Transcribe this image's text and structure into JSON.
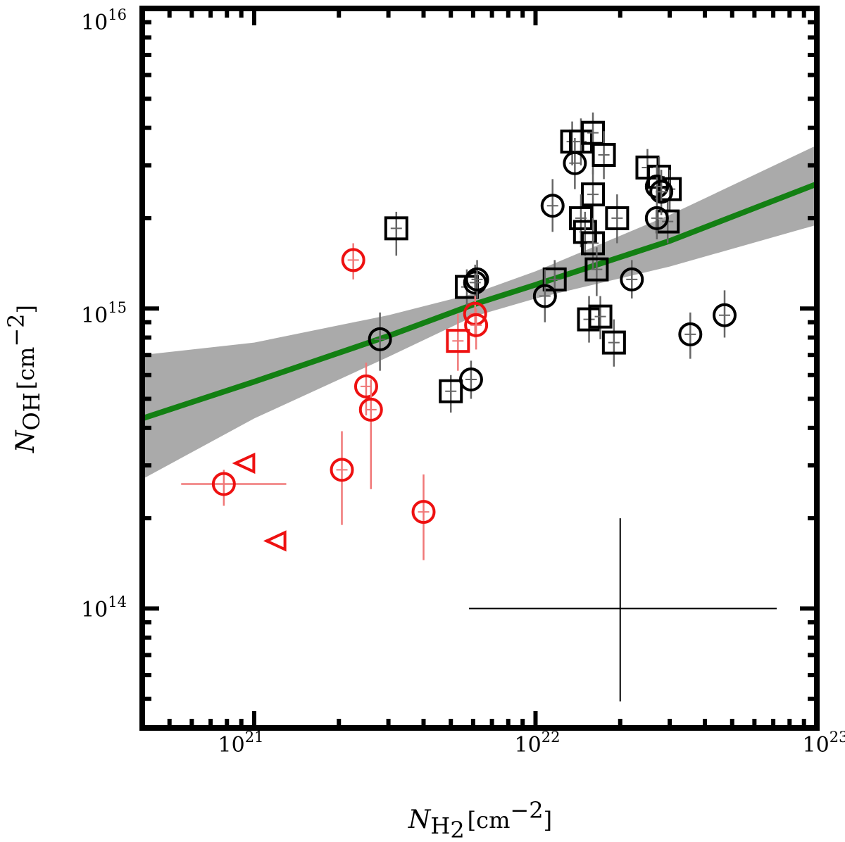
{
  "chart_data": {
    "type": "scatter",
    "title": "",
    "xscale": "log",
    "yscale": "log",
    "xlim": [
      4e+20,
      1e+23
    ],
    "ylim": [
      40000000000000.0,
      1e+16
    ],
    "x_ticks": [
      {
        "value": 1e+21,
        "base": "10",
        "exp": "21"
      },
      {
        "value": 1e+22,
        "base": "10",
        "exp": "22"
      },
      {
        "value": 1e+23,
        "base": "10",
        "exp": "23"
      }
    ],
    "y_ticks": [
      {
        "value": 100000000000000.0,
        "base": "10",
        "exp": "14"
      },
      {
        "value": 1000000000000000.0,
        "base": "10",
        "exp": "15"
      },
      {
        "value": 1e+16,
        "base": "10",
        "exp": "16"
      }
    ],
    "xlabel": {
      "symbol": "N",
      "sub": "H",
      "subsub": "2",
      "unit_open": "[cm",
      "unit_exp": "−2",
      "unit_close": "]"
    },
    "ylabel": {
      "symbol": "N",
      "sub": "OH",
      "unit_open": "[cm",
      "unit_exp": "−2",
      "unit_close": "]"
    },
    "fit": {
      "color": "#138013",
      "band_color": "#aaaaaa",
      "points": [
        {
          "x": 4e+20,
          "y": 430000000000000.0,
          "lo": 270000000000000.0,
          "hi": 700000000000000.0
        },
        {
          "x": 1e+21,
          "y": 570000000000000.0,
          "lo": 430000000000000.0,
          "hi": 770000000000000.0
        },
        {
          "x": 3e+21,
          "y": 810000000000000.0,
          "lo": 690000000000000.0,
          "hi": 950000000000000.0
        },
        {
          "x": 6e+21,
          "y": 1030000000000000.0,
          "lo": 940000000000000.0,
          "hi": 1120000000000000.0
        },
        {
          "x": 1e+22,
          "y": 1200000000000000.0,
          "lo": 1080000000000000.0,
          "hi": 1330000000000000.0
        },
        {
          "x": 3e+22,
          "y": 1680000000000000.0,
          "lo": 1380000000000000.0,
          "hi": 2050000000000000.0
        },
        {
          "x": 1e+23,
          "y": 2600000000000000.0,
          "lo": 1900000000000000.0,
          "hi": 3500000000000000.0
        }
      ]
    },
    "representative_error": {
      "x": 2e+22,
      "y": 100000000000000.0,
      "xlo": 5.8e+21,
      "xhi": 7.2e+22,
      "ylo": 49000000000000.0,
      "yhi": 200000000000000.0
    },
    "series": [
      {
        "name": "black-squares",
        "marker": "square",
        "color": "#000000",
        "errcolor": "#666666",
        "points": [
          {
            "x": 3.2e+21,
            "y": 1850000000000000.0,
            "ylo": 1500000000000000.0,
            "yhi": 2100000000000000.0
          },
          {
            "x": 5e+21,
            "y": 530000000000000.0,
            "ylo": 450000000000000.0,
            "yhi": 600000000000000.0
          },
          {
            "x": 5.7e+21,
            "y": 1180000000000000.0,
            "ylo": 1020000000000000.0,
            "yhi": 1350000000000000.0
          },
          {
            "x": 1.17e+22,
            "y": 1250000000000000.0,
            "ylo": 1100000000000000.0,
            "yhi": 1450000000000000.0
          },
          {
            "x": 1.35e+22,
            "y": 3600000000000000.0,
            "ylo": 3000000000000000.0,
            "yhi": 4200000000000000.0
          },
          {
            "x": 1.45e+22,
            "y": 3600000000000000.0,
            "ylo": 3000000000000000.0,
            "yhi": 4300000000000000.0
          },
          {
            "x": 1.6e+22,
            "y": 3850000000000000.0,
            "ylo": 2800000000000000.0,
            "yhi": 4500000000000000.0
          },
          {
            "x": 1.75e+22,
            "y": 3250000000000000.0,
            "ylo": 2700000000000000.0,
            "yhi": 3900000000000000.0
          },
          {
            "x": 1.6e+22,
            "y": 2400000000000000.0,
            "ylo": 2000000000000000.0,
            "yhi": 2900000000000000.0
          },
          {
            "x": 1.45e+22,
            "y": 2000000000000000.0,
            "ylo": 1600000000000000.0,
            "yhi": 2400000000000000.0
          },
          {
            "x": 1.5e+22,
            "y": 1800000000000000.0,
            "ylo": 1500000000000000.0,
            "yhi": 2100000000000000.0
          },
          {
            "x": 1.6e+22,
            "y": 1650000000000000.0,
            "ylo": 1350000000000000.0,
            "yhi": 2000000000000000.0
          },
          {
            "x": 1.65e+22,
            "y": 1350000000000000.0,
            "ylo": 1100000000000000.0,
            "yhi": 1600000000000000.0
          },
          {
            "x": 1.95e+22,
            "y": 2000000000000000.0,
            "ylo": 1650000000000000.0,
            "yhi": 2400000000000000.0
          },
          {
            "x": 1.55e+22,
            "y": 920000000000000.0,
            "ylo": 770000000000000.0,
            "yhi": 1100000000000000.0
          },
          {
            "x": 1.7e+22,
            "y": 940000000000000.0,
            "ylo": 790000000000000.0,
            "yhi": 1100000000000000.0
          },
          {
            "x": 1.9e+22,
            "y": 770000000000000.0,
            "ylo": 640000000000000.0,
            "yhi": 920000000000000.0
          },
          {
            "x": 2.5e+22,
            "y": 2950000000000000.0,
            "ylo": 2500000000000000.0,
            "yhi": 3400000000000000.0
          },
          {
            "x": 2.75e+22,
            "y": 2750000000000000.0,
            "ylo": 2300000000000000.0,
            "yhi": 3200000000000000.0
          },
          {
            "x": 3e+22,
            "y": 2500000000000000.0,
            "ylo": 2100000000000000.0,
            "yhi": 2900000000000000.0
          },
          {
            "x": 2.95e+22,
            "y": 1950000000000000.0,
            "ylo": 1650000000000000.0,
            "yhi": 2300000000000000.0
          }
        ]
      },
      {
        "name": "black-circles",
        "marker": "circle",
        "color": "#000000",
        "errcolor": "#666666",
        "points": [
          {
            "x": 2.8e+21,
            "y": 790000000000000.0,
            "ylo": 620000000000000.0,
            "yhi": 970000000000000.0
          },
          {
            "x": 5.9e+21,
            "y": 580000000000000.0,
            "ylo": 500000000000000.0,
            "yhi": 670000000000000.0
          },
          {
            "x": 6.1e+21,
            "y": 1220000000000000.0,
            "ylo": 1050000000000000.0,
            "yhi": 1400000000000000.0
          },
          {
            "x": 6.2e+21,
            "y": 1250000000000000.0,
            "ylo": 1080000000000000.0,
            "yhi": 1450000000000000.0
          },
          {
            "x": 1.08e+22,
            "y": 1100000000000000.0,
            "ylo": 900000000000000.0,
            "yhi": 1350000000000000.0
          },
          {
            "x": 1.15e+22,
            "y": 2200000000000000.0,
            "ylo": 1800000000000000.0,
            "yhi": 2700000000000000.0
          },
          {
            "x": 1.38e+22,
            "y": 3050000000000000.0,
            "ylo": 2500000000000000.0,
            "yhi": 3700000000000000.0
          },
          {
            "x": 2.2e+22,
            "y": 1250000000000000.0,
            "ylo": 1080000000000000.0,
            "yhi": 1450000000000000.0
          },
          {
            "x": 2.7e+22,
            "y": 2550000000000000.0,
            "ylo": 2150000000000000.0,
            "yhi": 3000000000000000.0
          },
          {
            "x": 2.8e+22,
            "y": 2450000000000000.0,
            "ylo": 2050000000000000.0,
            "yhi": 2900000000000000.0
          },
          {
            "x": 2.7e+22,
            "y": 2000000000000000.0,
            "ylo": 1700000000000000.0,
            "yhi": 2400000000000000.0
          },
          {
            "x": 3.55e+22,
            "y": 820000000000000.0,
            "ylo": 680000000000000.0,
            "yhi": 970000000000000.0
          },
          {
            "x": 4.7e+22,
            "y": 950000000000000.0,
            "ylo": 800000000000000.0,
            "yhi": 1150000000000000.0
          }
        ]
      },
      {
        "name": "red-circles",
        "marker": "circle",
        "color": "#ee1111",
        "errcolor": "#f07878",
        "points": [
          {
            "x": 7.8e+20,
            "y": 260000000000000.0,
            "ylo": 220000000000000.0,
            "yhi": 290000000000000.0,
            "xlo": 5.5e+20,
            "xhi": 1.3e+21
          },
          {
            "x": 2.05e+21,
            "y": 290000000000000.0,
            "ylo": 190000000000000.0,
            "yhi": 390000000000000.0
          },
          {
            "x": 2.25e+21,
            "y": 1450000000000000.0,
            "ylo": 1250000000000000.0,
            "yhi": 1650000000000000.0
          },
          {
            "x": 2.5e+21,
            "y": 550000000000000.0,
            "ylo": 440000000000000.0,
            "yhi": 660000000000000.0
          },
          {
            "x": 2.6e+21,
            "y": 460000000000000.0,
            "ylo": 250000000000000.0,
            "yhi": 580000000000000.0
          },
          {
            "x": 4e+21,
            "y": 210000000000000.0,
            "ylo": 145000000000000.0,
            "yhi": 280000000000000.0
          },
          {
            "x": 6.1e+21,
            "y": 960000000000000.0,
            "ylo": 800000000000000.0,
            "yhi": 1100000000000000.0
          },
          {
            "x": 6.15e+21,
            "y": 880000000000000.0,
            "ylo": 730000000000000.0,
            "yhi": 1000000000000000.0
          }
        ]
      },
      {
        "name": "red-squares",
        "marker": "square",
        "color": "#ee1111",
        "errcolor": "#f07878",
        "points": [
          {
            "x": 5.3e+21,
            "y": 780000000000000.0,
            "ylo": 620000000000000.0,
            "yhi": 960000000000000.0
          }
        ]
      },
      {
        "name": "red-triangles",
        "marker": "triangle-left",
        "color": "#ee1111",
        "errcolor": "#f07878",
        "points": [
          {
            "x": 9.3e+20,
            "y": 305000000000000.0
          },
          {
            "x": 1.2e+21,
            "y": 168000000000000.0
          }
        ]
      }
    ]
  }
}
